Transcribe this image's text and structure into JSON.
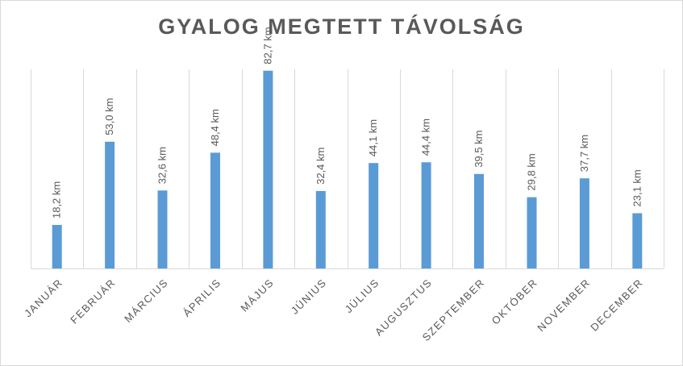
{
  "chart_data": {
    "type": "bar",
    "title": "GYALOG MEGTETT TÁVOLSÁG",
    "categories": [
      "JANUÁR",
      "FEBRUÁR",
      "MÁRCIUS",
      "ÁPRILIS",
      "MÁJUS",
      "JÚNIUS",
      "JÚLIUS",
      "AUGUSZTUS",
      "SZEPTEMBER",
      "OKTÓBER",
      "NOVEMBER",
      "DECEMBER"
    ],
    "values": [
      18.2,
      53.0,
      32.6,
      48.4,
      82.7,
      32.4,
      44.1,
      44.4,
      39.5,
      29.8,
      37.7,
      23.1
    ],
    "data_labels": [
      "18,2 km",
      "53,0 km",
      "32,6 km",
      "48,4 km",
      "82,7 km",
      "32,4 km",
      "44,1 km",
      "44,4 km",
      "39,5 km",
      "29,8 km",
      "37,7 km",
      "23,1 km"
    ],
    "xlabel": "",
    "ylabel": "",
    "ylim": [
      0,
      90
    ],
    "grid": "vertical",
    "legend": "none",
    "bar_color": "#5b9bd5",
    "grid_color": "#d9d9d9",
    "text_color": "#595959"
  }
}
